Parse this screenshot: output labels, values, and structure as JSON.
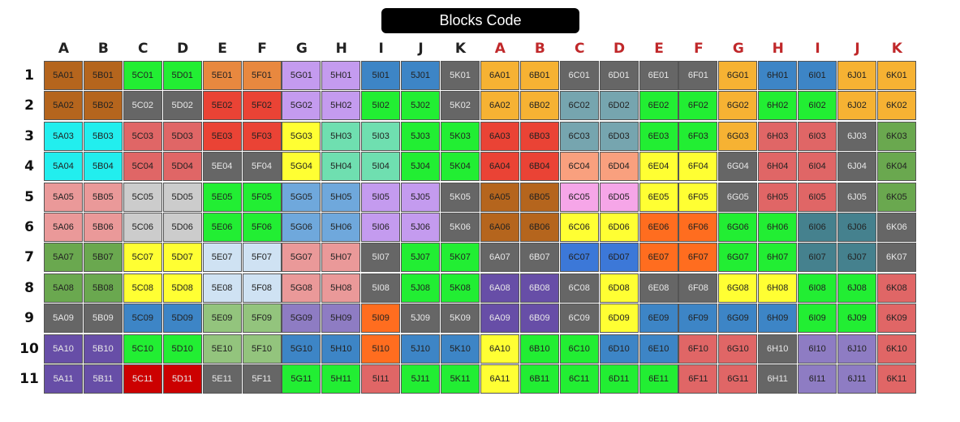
{
  "title": "Blocks Code",
  "columns": [
    {
      "label": "A",
      "color": "#222222"
    },
    {
      "label": "B",
      "color": "#222222"
    },
    {
      "label": "C",
      "color": "#222222"
    },
    {
      "label": "D",
      "color": "#222222"
    },
    {
      "label": "E",
      "color": "#222222"
    },
    {
      "label": "F",
      "color": "#222222"
    },
    {
      "label": "G",
      "color": "#222222"
    },
    {
      "label": "H",
      "color": "#222222"
    },
    {
      "label": "I",
      "color": "#222222"
    },
    {
      "label": "J",
      "color": "#222222"
    },
    {
      "label": "K",
      "color": "#222222"
    },
    {
      "label": "A",
      "color": "#c0282a"
    },
    {
      "label": "B",
      "color": "#c0282a"
    },
    {
      "label": "C",
      "color": "#c0282a"
    },
    {
      "label": "D",
      "color": "#c0282a"
    },
    {
      "label": "E",
      "color": "#c0282a"
    },
    {
      "label": "F",
      "color": "#c0282a"
    },
    {
      "label": "G",
      "color": "#c0282a"
    },
    {
      "label": "H",
      "color": "#c0282a"
    },
    {
      "label": "I",
      "color": "#c0282a"
    },
    {
      "label": "J",
      "color": "#c0282a"
    },
    {
      "label": "K",
      "color": "#c0282a"
    }
  ],
  "rows": [
    {
      "label": "1",
      "cells": [
        {
          "t": "5A01",
          "c": "#b5651d"
        },
        {
          "t": "5B01",
          "c": "#b5651d"
        },
        {
          "t": "5C01",
          "c": "#22ee33"
        },
        {
          "t": "5D01",
          "c": "#22ee33"
        },
        {
          "t": "5E01",
          "c": "#e8883f"
        },
        {
          "t": "5F01",
          "c": "#e8883f"
        },
        {
          "t": "5G01",
          "c": "#c49bef"
        },
        {
          "t": "5H01",
          "c": "#c49bef"
        },
        {
          "t": "5I01",
          "c": "#3d85c6"
        },
        {
          "t": "5J01",
          "c": "#3d85c6"
        },
        {
          "t": "5K01",
          "c": "#666666"
        },
        {
          "t": "6A01",
          "c": "#f6b233"
        },
        {
          "t": "6B01",
          "c": "#f6b233"
        },
        {
          "t": "6C01",
          "c": "#666666"
        },
        {
          "t": "6D01",
          "c": "#666666"
        },
        {
          "t": "6E01",
          "c": "#666666"
        },
        {
          "t": "6F01",
          "c": "#666666"
        },
        {
          "t": "6G01",
          "c": "#f6b233"
        },
        {
          "t": "6H01",
          "c": "#3d85c6"
        },
        {
          "t": "6I01",
          "c": "#3d85c6"
        },
        {
          "t": "6J01",
          "c": "#f6b233"
        },
        {
          "t": "6K01",
          "c": "#f6b233"
        }
      ]
    },
    {
      "label": "2",
      "cells": [
        {
          "t": "5A02",
          "c": "#b5651d"
        },
        {
          "t": "5B02",
          "c": "#b5651d"
        },
        {
          "t": "5C02",
          "c": "#666666"
        },
        {
          "t": "5D02",
          "c": "#666666"
        },
        {
          "t": "5E02",
          "c": "#ea4335"
        },
        {
          "t": "5F02",
          "c": "#ea4335"
        },
        {
          "t": "5G02",
          "c": "#c49bef"
        },
        {
          "t": "5H02",
          "c": "#c49bef"
        },
        {
          "t": "5I02",
          "c": "#22ee33"
        },
        {
          "t": "5J02",
          "c": "#22ee33"
        },
        {
          "t": "5K02",
          "c": "#666666"
        },
        {
          "t": "6A02",
          "c": "#f6b233"
        },
        {
          "t": "6B02",
          "c": "#f6b233"
        },
        {
          "t": "6C02",
          "c": "#76a5af"
        },
        {
          "t": "6D02",
          "c": "#76a5af"
        },
        {
          "t": "6E02",
          "c": "#22ee33"
        },
        {
          "t": "6F02",
          "c": "#22ee33"
        },
        {
          "t": "6G02",
          "c": "#f6b233"
        },
        {
          "t": "6H02",
          "c": "#22ee33"
        },
        {
          "t": "6I02",
          "c": "#22ee33"
        },
        {
          "t": "6J02",
          "c": "#f6b233"
        },
        {
          "t": "6K02",
          "c": "#f6b233"
        }
      ]
    },
    {
      "label": "3",
      "cells": [
        {
          "t": "5A03",
          "c": "#22eeee"
        },
        {
          "t": "5B03",
          "c": "#22eeee"
        },
        {
          "t": "5C03",
          "c": "#e06666"
        },
        {
          "t": "5D03",
          "c": "#e06666"
        },
        {
          "t": "5E03",
          "c": "#ea4335"
        },
        {
          "t": "5F03",
          "c": "#ea4335"
        },
        {
          "t": "5G03",
          "c": "#ffff33"
        },
        {
          "t": "5H03",
          "c": "#6fdfb0"
        },
        {
          "t": "5I03",
          "c": "#6fdfb0"
        },
        {
          "t": "5J03",
          "c": "#22ee33"
        },
        {
          "t": "5K03",
          "c": "#22ee33"
        },
        {
          "t": "6A03",
          "c": "#ea4335"
        },
        {
          "t": "6B03",
          "c": "#ea4335"
        },
        {
          "t": "6C03",
          "c": "#76a5af"
        },
        {
          "t": "6D03",
          "c": "#76a5af"
        },
        {
          "t": "6E03",
          "c": "#22ee33"
        },
        {
          "t": "6F03",
          "c": "#22ee33"
        },
        {
          "t": "6G03",
          "c": "#f6b233"
        },
        {
          "t": "6H03",
          "c": "#e06666"
        },
        {
          "t": "6I03",
          "c": "#e06666"
        },
        {
          "t": "6J03",
          "c": "#666666"
        },
        {
          "t": "6K03",
          "c": "#6aa84f"
        }
      ]
    },
    {
      "label": "4",
      "cells": [
        {
          "t": "5A04",
          "c": "#22eeee"
        },
        {
          "t": "5B04",
          "c": "#22eeee"
        },
        {
          "t": "5C04",
          "c": "#e06666"
        },
        {
          "t": "5D04",
          "c": "#e06666"
        },
        {
          "t": "5E04",
          "c": "#666666"
        },
        {
          "t": "5F04",
          "c": "#666666"
        },
        {
          "t": "5G04",
          "c": "#ffff33"
        },
        {
          "t": "5H04",
          "c": "#6fdfb0"
        },
        {
          "t": "5I04",
          "c": "#6fdfb0"
        },
        {
          "t": "5J04",
          "c": "#22ee33"
        },
        {
          "t": "5K04",
          "c": "#22ee33"
        },
        {
          "t": "6A04",
          "c": "#ea4335"
        },
        {
          "t": "6B04",
          "c": "#ea4335"
        },
        {
          "t": "6C04",
          "c": "#f9a07e"
        },
        {
          "t": "6D04",
          "c": "#f9a07e"
        },
        {
          "t": "6E04",
          "c": "#ffff33"
        },
        {
          "t": "6F04",
          "c": "#ffff33"
        },
        {
          "t": "6G04",
          "c": "#666666"
        },
        {
          "t": "6H04",
          "c": "#e06666"
        },
        {
          "t": "6I04",
          "c": "#e06666"
        },
        {
          "t": "6J04",
          "c": "#666666"
        },
        {
          "t": "6K04",
          "c": "#6aa84f"
        }
      ]
    },
    {
      "label": "5",
      "cells": [
        {
          "t": "5A05",
          "c": "#ea9999"
        },
        {
          "t": "5B05",
          "c": "#ea9999"
        },
        {
          "t": "5C05",
          "c": "#cccccc"
        },
        {
          "t": "5D05",
          "c": "#cccccc"
        },
        {
          "t": "5E05",
          "c": "#22ee33"
        },
        {
          "t": "5F05",
          "c": "#22ee33"
        },
        {
          "t": "5G05",
          "c": "#6fa8dc"
        },
        {
          "t": "5H05",
          "c": "#6fa8dc"
        },
        {
          "t": "5I05",
          "c": "#c49bef"
        },
        {
          "t": "5J05",
          "c": "#c49bef"
        },
        {
          "t": "5K05",
          "c": "#666666"
        },
        {
          "t": "6A05",
          "c": "#b5651d"
        },
        {
          "t": "6B05",
          "c": "#b5651d"
        },
        {
          "t": "6C05",
          "c": "#f6a6e8"
        },
        {
          "t": "6D05",
          "c": "#f6a6e8"
        },
        {
          "t": "6E05",
          "c": "#ffff33"
        },
        {
          "t": "6F05",
          "c": "#ffff33"
        },
        {
          "t": "6G05",
          "c": "#666666"
        },
        {
          "t": "6H05",
          "c": "#e06666"
        },
        {
          "t": "6I05",
          "c": "#e06666"
        },
        {
          "t": "6J05",
          "c": "#666666"
        },
        {
          "t": "6K05",
          "c": "#6aa84f"
        }
      ]
    },
    {
      "label": "6",
      "cells": [
        {
          "t": "5A06",
          "c": "#ea9999"
        },
        {
          "t": "5B06",
          "c": "#ea9999"
        },
        {
          "t": "5C06",
          "c": "#cccccc"
        },
        {
          "t": "5D06",
          "c": "#cccccc"
        },
        {
          "t": "5E06",
          "c": "#22ee33"
        },
        {
          "t": "5F06",
          "c": "#22ee33"
        },
        {
          "t": "5G06",
          "c": "#6fa8dc"
        },
        {
          "t": "5H06",
          "c": "#6fa8dc"
        },
        {
          "t": "5I06",
          "c": "#c49bef"
        },
        {
          "t": "5J06",
          "c": "#c49bef"
        },
        {
          "t": "5K06",
          "c": "#666666"
        },
        {
          "t": "6A06",
          "c": "#b5651d"
        },
        {
          "t": "6B06",
          "c": "#b5651d"
        },
        {
          "t": "6C06",
          "c": "#ffff33"
        },
        {
          "t": "6D06",
          "c": "#ffff33"
        },
        {
          "t": "6E06",
          "c": "#ff6d1f"
        },
        {
          "t": "6F06",
          "c": "#ff6d1f"
        },
        {
          "t": "6G06",
          "c": "#22ee33"
        },
        {
          "t": "6H06",
          "c": "#22ee33"
        },
        {
          "t": "6I06",
          "c": "#45818e"
        },
        {
          "t": "6J06",
          "c": "#45818e"
        },
        {
          "t": "6K06",
          "c": "#666666"
        }
      ]
    },
    {
      "label": "7",
      "cells": [
        {
          "t": "5A07",
          "c": "#6aa84f"
        },
        {
          "t": "5B07",
          "c": "#6aa84f"
        },
        {
          "t": "5C07",
          "c": "#ffff33"
        },
        {
          "t": "5D07",
          "c": "#ffff33"
        },
        {
          "t": "5E07",
          "c": "#cfe2f3"
        },
        {
          "t": "5F07",
          "c": "#cfe2f3"
        },
        {
          "t": "5G07",
          "c": "#ea9999"
        },
        {
          "t": "5H07",
          "c": "#ea9999"
        },
        {
          "t": "5I07",
          "c": "#666666"
        },
        {
          "t": "5J07",
          "c": "#22ee33"
        },
        {
          "t": "5K07",
          "c": "#22ee33"
        },
        {
          "t": "6A07",
          "c": "#666666"
        },
        {
          "t": "6B07",
          "c": "#666666"
        },
        {
          "t": "6C07",
          "c": "#3c78d8"
        },
        {
          "t": "6D07",
          "c": "#3c78d8"
        },
        {
          "t": "6E07",
          "c": "#ff6d1f"
        },
        {
          "t": "6F07",
          "c": "#ff6d1f"
        },
        {
          "t": "6G07",
          "c": "#22ee33"
        },
        {
          "t": "6H07",
          "c": "#22ee33"
        },
        {
          "t": "6I07",
          "c": "#45818e"
        },
        {
          "t": "6J07",
          "c": "#45818e"
        },
        {
          "t": "6K07",
          "c": "#666666"
        }
      ]
    },
    {
      "label": "8",
      "cells": [
        {
          "t": "5A08",
          "c": "#6aa84f"
        },
        {
          "t": "5B08",
          "c": "#6aa84f"
        },
        {
          "t": "5C08",
          "c": "#ffff33"
        },
        {
          "t": "5D08",
          "c": "#ffff33"
        },
        {
          "t": "5E08",
          "c": "#cfe2f3"
        },
        {
          "t": "5F08",
          "c": "#cfe2f3"
        },
        {
          "t": "5G08",
          "c": "#ea9999"
        },
        {
          "t": "5H08",
          "c": "#ea9999"
        },
        {
          "t": "5I08",
          "c": "#666666"
        },
        {
          "t": "5J08",
          "c": "#22ee33"
        },
        {
          "t": "5K08",
          "c": "#22ee33"
        },
        {
          "t": "6A08",
          "c": "#674ea7"
        },
        {
          "t": "6B08",
          "c": "#674ea7"
        },
        {
          "t": "6C08",
          "c": "#666666"
        },
        {
          "t": "6D08",
          "c": "#ffff33"
        },
        {
          "t": "6E08",
          "c": "#666666"
        },
        {
          "t": "6F08",
          "c": "#666666"
        },
        {
          "t": "6G08",
          "c": "#ffff33"
        },
        {
          "t": "6H08",
          "c": "#ffff33"
        },
        {
          "t": "6I08",
          "c": "#22ee33"
        },
        {
          "t": "6J08",
          "c": "#22ee33"
        },
        {
          "t": "6K08",
          "c": "#e06666"
        }
      ]
    },
    {
      "label": "9",
      "cells": [
        {
          "t": "5A09",
          "c": "#666666"
        },
        {
          "t": "5B09",
          "c": "#666666"
        },
        {
          "t": "5C09",
          "c": "#3d85c6"
        },
        {
          "t": "5D09",
          "c": "#3d85c6"
        },
        {
          "t": "5E09",
          "c": "#93c47d"
        },
        {
          "t": "5F09",
          "c": "#93c47d"
        },
        {
          "t": "5G09",
          "c": "#8e7cc3"
        },
        {
          "t": "5H09",
          "c": "#8e7cc3"
        },
        {
          "t": "5I09",
          "c": "#ff6d1f"
        },
        {
          "t": "5J09",
          "c": "#666666"
        },
        {
          "t": "5K09",
          "c": "#666666"
        },
        {
          "t": "6A09",
          "c": "#674ea7"
        },
        {
          "t": "6B09",
          "c": "#674ea7"
        },
        {
          "t": "6C09",
          "c": "#666666"
        },
        {
          "t": "6D09",
          "c": "#ffff33"
        },
        {
          "t": "6E09",
          "c": "#3d85c6"
        },
        {
          "t": "6F09",
          "c": "#3d85c6"
        },
        {
          "t": "6G09",
          "c": "#3d85c6"
        },
        {
          "t": "6H09",
          "c": "#3d85c6"
        },
        {
          "t": "6I09",
          "c": "#22ee33"
        },
        {
          "t": "6J09",
          "c": "#22ee33"
        },
        {
          "t": "6K09",
          "c": "#e06666"
        }
      ]
    },
    {
      "label": "10",
      "cells": [
        {
          "t": "5A10",
          "c": "#674ea7"
        },
        {
          "t": "5B10",
          "c": "#674ea7"
        },
        {
          "t": "5C10",
          "c": "#22ee33"
        },
        {
          "t": "5D10",
          "c": "#22ee33"
        },
        {
          "t": "5E10",
          "c": "#93c47d"
        },
        {
          "t": "5F10",
          "c": "#93c47d"
        },
        {
          "t": "5G10",
          "c": "#3d85c6"
        },
        {
          "t": "5H10",
          "c": "#3d85c6"
        },
        {
          "t": "5I10",
          "c": "#ff6d1f"
        },
        {
          "t": "5J10",
          "c": "#3d85c6"
        },
        {
          "t": "5K10",
          "c": "#3d85c6"
        },
        {
          "t": "6A10",
          "c": "#ffff33"
        },
        {
          "t": "6B10",
          "c": "#22ee33"
        },
        {
          "t": "6C10",
          "c": "#22ee33"
        },
        {
          "t": "6D10",
          "c": "#3d85c6"
        },
        {
          "t": "6E10",
          "c": "#3d85c6"
        },
        {
          "t": "6F10",
          "c": "#e06666"
        },
        {
          "t": "6G10",
          "c": "#e06666"
        },
        {
          "t": "6H10",
          "c": "#666666"
        },
        {
          "t": "6I10",
          "c": "#8e7cc3"
        },
        {
          "t": "6J10",
          "c": "#8e7cc3"
        },
        {
          "t": "6K10",
          "c": "#e06666"
        }
      ]
    },
    {
      "label": "11",
      "cells": [
        {
          "t": "5A11",
          "c": "#674ea7"
        },
        {
          "t": "5B11",
          "c": "#674ea7"
        },
        {
          "t": "5C11",
          "c": "#cc0000"
        },
        {
          "t": "5D11",
          "c": "#cc0000"
        },
        {
          "t": "5E11",
          "c": "#666666"
        },
        {
          "t": "5F11",
          "c": "#666666"
        },
        {
          "t": "5G11",
          "c": "#22ee33"
        },
        {
          "t": "5H11",
          "c": "#22ee33"
        },
        {
          "t": "5I11",
          "c": "#e06666"
        },
        {
          "t": "5J11",
          "c": "#22ee33"
        },
        {
          "t": "5K11",
          "c": "#22ee33"
        },
        {
          "t": "6A11",
          "c": "#ffff33"
        },
        {
          "t": "6B11",
          "c": "#22ee33"
        },
        {
          "t": "6C11",
          "c": "#22ee33"
        },
        {
          "t": "6D11",
          "c": "#22ee33"
        },
        {
          "t": "6E11",
          "c": "#22ee33"
        },
        {
          "t": "6F11",
          "c": "#e06666"
        },
        {
          "t": "6G11",
          "c": "#e06666"
        },
        {
          "t": "6H11",
          "c": "#666666"
        },
        {
          "t": "6I11",
          "c": "#8e7cc3"
        },
        {
          "t": "6J11",
          "c": "#8e7cc3"
        },
        {
          "t": "6K11",
          "c": "#e06666"
        }
      ]
    }
  ]
}
